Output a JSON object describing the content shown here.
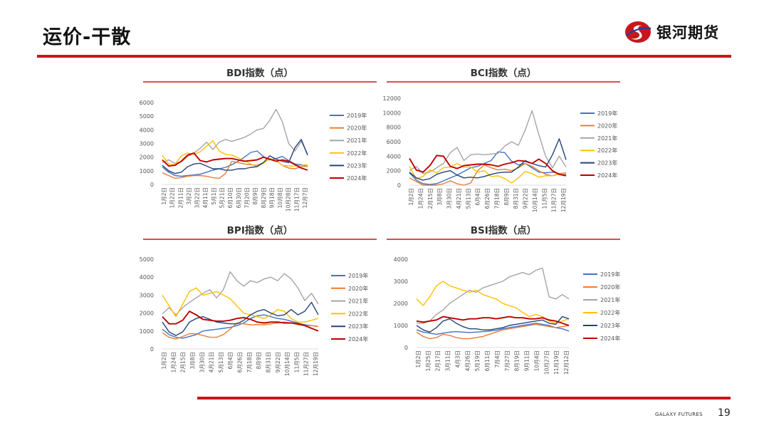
{
  "header": {
    "title": "运价-干散",
    "logo_text": "银河期货",
    "brand_color": "#c8161d"
  },
  "footer": {
    "brand": "GALAXY FUTURES",
    "page_number": "19"
  },
  "chart_data": [
    {
      "type": "line",
      "title": "BDI指数（点）",
      "ylim": [
        0,
        6000
      ],
      "yticks": [
        "0",
        "1000",
        "2000",
        "3000",
        "4000",
        "5000",
        "6000"
      ],
      "x_tick_labels": [
        "1月2日",
        "1月22日",
        "2月11日",
        "3月2日",
        "3月22日",
        "4月11日",
        "5月1日",
        "5月21日",
        "6月10日",
        "6月30日",
        "7月20日",
        "8月9日",
        "8月29日",
        "9月18日",
        "10月8日",
        "10月28日",
        "11月17日",
        "12月7日"
      ],
      "legend_position": "right",
      "series": [
        {
          "name": "2019年",
          "color": "#4472c4",
          "values": [
            1280,
            900,
            650,
            600,
            650,
            700,
            750,
            900,
            1050,
            1150,
            1250,
            1450,
            1700,
            2000,
            2350,
            2450,
            2050,
            1800,
            1900,
            2050,
            1750,
            1500,
            1450,
            1300
          ]
        },
        {
          "name": "2020年",
          "color": "#ed7d31",
          "values": [
            850,
            650,
            450,
            500,
            600,
            650,
            650,
            600,
            500,
            450,
            800,
            1700,
            1600,
            1500,
            1450,
            1400,
            1600,
            1850,
            1750,
            1400,
            1200,
            1150,
            1300,
            1350
          ]
        },
        {
          "name": "2021年",
          "color": "#a5a5a5",
          "values": [
            1600,
            1800,
            1550,
            1650,
            2050,
            2300,
            2650,
            3100,
            2550,
            3100,
            3300,
            3150,
            3300,
            3450,
            3700,
            4000,
            4100,
            4700,
            5500,
            4600,
            3000,
            2450,
            3150,
            2250
          ]
        },
        {
          "name": "2022年",
          "color": "#ffc000",
          "values": [
            2150,
            1500,
            1450,
            2100,
            2300,
            2200,
            2400,
            2800,
            3200,
            2450,
            2200,
            2150,
            1950,
            1750,
            1500,
            1300,
            1550,
            1900,
            1750,
            1400,
            1350,
            1350,
            1400,
            1450
          ]
        },
        {
          "name": "2023年",
          "color": "#264478",
          "values": [
            1400,
            1000,
            800,
            900,
            1300,
            1500,
            1550,
            1350,
            1150,
            1150,
            1050,
            1050,
            1150,
            1150,
            1250,
            1300,
            1600,
            2100,
            1850,
            1700,
            1600,
            2700,
            3300,
            2150
          ]
        },
        {
          "name": "2024年",
          "color": "#c00000",
          "values": [
            1800,
            1350,
            1400,
            1700,
            2150,
            2300,
            1750,
            1650,
            1800,
            1850,
            1900,
            1900,
            1800,
            1700,
            1750,
            1800,
            2000,
            1850,
            1700,
            1800,
            1700,
            1450,
            1200,
            1050
          ]
        }
      ]
    },
    {
      "type": "line",
      "title": "BCI指数（点）",
      "ylim": [
        0,
        12000
      ],
      "yticks": [
        "0",
        "2000",
        "4000",
        "6000",
        "8000",
        "10000",
        "12000"
      ],
      "x_tick_labels": [
        "1月2日",
        "1月24日",
        "2月15日",
        "3月8日",
        "3月30日",
        "4月21日",
        "5月13日",
        "6月4日",
        "6月26日",
        "7月18日",
        "8月9日",
        "8月31日",
        "9月22日",
        "10月14日",
        "11月5日",
        "11月27日",
        "12月19日"
      ],
      "legend_position": "right",
      "series": [
        {
          "name": "2019年",
          "color": "#4472c4",
          "values": [
            1700,
            700,
            200,
            100,
            200,
            600,
            1000,
            1400,
            1900,
            2400,
            2600,
            3000,
            3400,
            4600,
            4500,
            3300,
            2800,
            3000,
            2400,
            1800,
            1700,
            1800,
            1600,
            1500
          ]
        },
        {
          "name": "2020年",
          "color": "#ed7d31",
          "values": [
            1000,
            500,
            0,
            0,
            0,
            200,
            600,
            200,
            0,
            300,
            2000,
            2800,
            2400,
            2100,
            2200,
            2000,
            2400,
            3000,
            2600,
            2000,
            1500,
            1300,
            1600,
            1700
          ]
        },
        {
          "name": "2021年",
          "color": "#a5a5a5",
          "values": [
            2000,
            2600,
            1600,
            1800,
            2400,
            3000,
            4500,
            5200,
            3400,
            4200,
            4300,
            4200,
            4300,
            4400,
            5400,
            6000,
            5500,
            7600,
            10300,
            7000,
            4000,
            2400,
            4000,
            2500
          ]
        },
        {
          "name": "2022年",
          "color": "#ffc000",
          "values": [
            2600,
            900,
            1200,
            2100,
            1700,
            2400,
            2500,
            3000,
            2500,
            2500,
            1800,
            2000,
            1200,
            1300,
            900,
            300,
            1000,
            1900,
            1600,
            1100,
            1300,
            1300,
            1500,
            1600
          ]
        },
        {
          "name": "2023年",
          "color": "#264478",
          "values": [
            1800,
            1000,
            700,
            900,
            1500,
            1800,
            2000,
            1400,
            1000,
            1100,
            1000,
            1200,
            1500,
            1700,
            1800,
            1800,
            2500,
            3400,
            3000,
            2700,
            2500,
            4200,
            6400,
            3500
          ]
        },
        {
          "name": "2024年",
          "color": "#c00000",
          "values": [
            3700,
            2100,
            1800,
            2700,
            4100,
            4000,
            2600,
            2300,
            2700,
            2800,
            2900,
            2900,
            2800,
            2600,
            2900,
            3100,
            3400,
            3300,
            3000,
            3600,
            3000,
            2000,
            1500,
            1300
          ]
        }
      ]
    },
    {
      "type": "line",
      "title": "BPI指数（点）",
      "ylim": [
        0,
        5000
      ],
      "yticks": [
        "0",
        "1000",
        "2000",
        "3000",
        "4000",
        "5000"
      ],
      "x_tick_labels": [
        "1月2日",
        "1月24日",
        "2月15日",
        "3月8日",
        "3月30日",
        "4月21日",
        "5月13日",
        "6月4日",
        "6月26日",
        "7月18日",
        "8月9日",
        "8月31日",
        "9月22日",
        "10月14日",
        "11月5日",
        "11月27日",
        "12月19日"
      ],
      "legend_position": "right",
      "series": [
        {
          "name": "2019年",
          "color": "#4472c4",
          "values": [
            1100,
            800,
            650,
            600,
            700,
            800,
            1000,
            1050,
            1100,
            1150,
            1200,
            1300,
            1450,
            1700,
            1850,
            1900,
            1800,
            1700,
            1650,
            1550,
            1450,
            1350,
            1300,
            1250
          ]
        },
        {
          "name": "2020年",
          "color": "#ed7d31",
          "values": [
            900,
            650,
            550,
            700,
            850,
            850,
            750,
            650,
            650,
            800,
            1100,
            1450,
            1400,
            1350,
            1350,
            1350,
            1400,
            1450,
            1500,
            1450,
            1350,
            1300,
            1300,
            1250
          ]
        },
        {
          "name": "2021年",
          "color": "#a5a5a5",
          "values": [
            1950,
            2300,
            1900,
            2300,
            2600,
            2850,
            3100,
            3300,
            2850,
            3300,
            4300,
            3800,
            3500,
            3800,
            3700,
            3900,
            4000,
            3800,
            4200,
            3900,
            3400,
            2700,
            3100,
            2500
          ]
        },
        {
          "name": "2022年",
          "color": "#ffc000",
          "values": [
            3000,
            2400,
            1800,
            2500,
            3200,
            3400,
            3000,
            3100,
            3200,
            3000,
            2800,
            2400,
            2000,
            1900,
            1800,
            1700,
            1900,
            2200,
            2100,
            1700,
            1500,
            1500,
            1600,
            1700
          ]
        },
        {
          "name": "2023年",
          "color": "#264478",
          "values": [
            1500,
            950,
            750,
            950,
            1500,
            1700,
            1800,
            1650,
            1500,
            1450,
            1400,
            1400,
            1600,
            1900,
            2100,
            2200,
            2000,
            1850,
            1900,
            2200,
            1900,
            2100,
            2600,
            1900
          ]
        },
        {
          "name": "2024年",
          "color": "#c00000",
          "values": [
            1800,
            1400,
            1400,
            1600,
            2100,
            1900,
            1650,
            1600,
            1550,
            1550,
            1600,
            1700,
            1750,
            1650,
            1500,
            1450,
            1500,
            1500,
            1450,
            1450,
            1400,
            1300,
            1150,
            1000
          ]
        }
      ]
    },
    {
      "type": "line",
      "title": "BSI指数（点）",
      "ylim": [
        0,
        4000
      ],
      "yticks": [
        "0",
        "1000",
        "2000",
        "3000",
        "4000"
      ],
      "x_tick_labels": [
        "1月2日",
        "1月25日",
        "2月17日",
        "3月11日",
        "4月3日",
        "4月26日",
        "5月19日",
        "6月11日",
        "7月4日",
        "7月27日",
        "8月19日",
        "9月11日",
        "10月4日",
        "10月27日",
        "11月19日",
        "12月12日"
      ],
      "legend_position": "right",
      "series": [
        {
          "name": "2019年",
          "color": "#4472c4",
          "values": [
            800,
            700,
            650,
            600,
            650,
            700,
            720,
            700,
            680,
            700,
            720,
            750,
            780,
            850,
            900,
            950,
            1000,
            1050,
            1100,
            1050,
            1000,
            900,
            850,
            750
          ]
        },
        {
          "name": "2020年",
          "color": "#ed7d31",
          "values": [
            700,
            500,
            400,
            450,
            600,
            550,
            450,
            400,
            400,
            450,
            500,
            600,
            700,
            800,
            850,
            900,
            950,
            1000,
            1050,
            1000,
            950,
            900,
            950,
            1000
          ]
        },
        {
          "name": "2021年",
          "color": "#a5a5a5",
          "values": [
            1100,
            1100,
            1200,
            1500,
            1700,
            2000,
            2200,
            2400,
            2600,
            2500,
            2700,
            2800,
            2900,
            3000,
            3200,
            3300,
            3400,
            3300,
            3500,
            3600,
            2300,
            2200,
            2400,
            2200
          ]
        },
        {
          "name": "2022年",
          "color": "#ffc000",
          "values": [
            2200,
            1900,
            2300,
            2800,
            3000,
            2800,
            2700,
            2600,
            2500,
            2600,
            2400,
            2300,
            2200,
            2000,
            1900,
            1800,
            1600,
            1400,
            1500,
            1400,
            1200,
            1100,
            1200,
            1300
          ]
        },
        {
          "name": "2023年",
          "color": "#264478",
          "values": [
            1000,
            800,
            700,
            900,
            1200,
            1300,
            1100,
            950,
            850,
            850,
            800,
            800,
            850,
            900,
            1000,
            1050,
            1100,
            1150,
            1200,
            1250,
            1100,
            1050,
            1400,
            1300
          ]
        },
        {
          "name": "2024年",
          "color": "#c00000",
          "values": [
            1200,
            1150,
            1200,
            1250,
            1400,
            1350,
            1300,
            1250,
            1300,
            1300,
            1350,
            1350,
            1300,
            1350,
            1400,
            1350,
            1350,
            1300,
            1300,
            1350,
            1250,
            1200,
            1100,
            1000
          ]
        }
      ]
    }
  ]
}
